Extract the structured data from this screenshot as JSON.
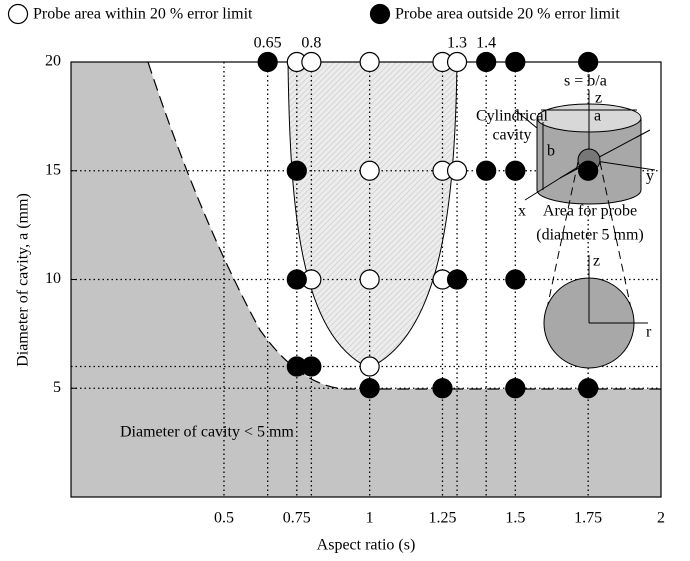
{
  "chart_data": {
    "type": "scatter",
    "x_label": "Aspect ratio (s)",
    "y_label": "Diameter of cavity, a (mm)",
    "xlim": [
      -0.025,
      2
    ],
    "ylim": [
      0,
      20
    ],
    "xticks": [
      0.5,
      0.75,
      1,
      1.25,
      1.5,
      1.75,
      2
    ],
    "top_xticks": [
      0.65,
      0.8,
      1.3,
      1.4
    ],
    "yticks": [
      5,
      10,
      15,
      20
    ],
    "legend": "top",
    "region_label": "Diameter of cavity < 5 mm",
    "series": [
      {
        "name": "Probe area within 20 % error limit",
        "color": "#000000",
        "fill": "#ffffff",
        "x": [
          0.75,
          0.8,
          1,
          1.25,
          1.3,
          1,
          1.25,
          1.3,
          0.8,
          1,
          1.25,
          1
        ],
        "values": [
          20,
          20,
          20,
          20,
          20,
          15,
          15,
          15,
          10,
          10,
          10,
          6
        ]
      },
      {
        "name": "Probe area outside 20 % error limit",
        "color": "#000000",
        "fill": "#000000",
        "x": [
          0.65,
          1.4,
          1.5,
          1.75,
          0.75,
          1.4,
          1.5,
          1.75,
          0.75,
          1.3,
          1.5,
          0.75,
          0.8,
          1,
          1.25,
          1.5,
          1.75
        ],
        "values": [
          20,
          20,
          20,
          20,
          15,
          15,
          15,
          15,
          10,
          10,
          10,
          6,
          6,
          5,
          5,
          5,
          5
        ]
      }
    ],
    "inset": {
      "ratio": "s = b/a",
      "cavity": [
        "Cylindrical",
        "cavity"
      ],
      "a": "a",
      "b": "b",
      "x": "x",
      "y": "y",
      "z": "z",
      "probe": [
        "Area for probe",
        "(diameter 5 mm)"
      ],
      "z2": "z",
      "r": "r"
    }
  }
}
